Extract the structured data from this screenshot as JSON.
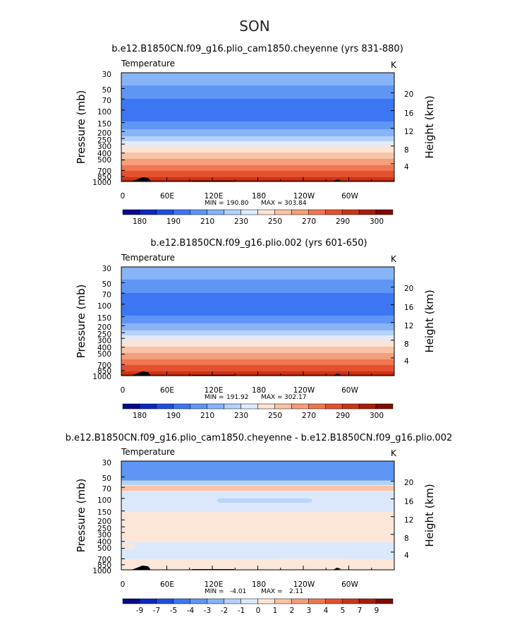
{
  "title": "SON",
  "colors": {
    "abs": [
      "#08088a",
      "#0d26c2",
      "#1a4fe0",
      "#3c76f2",
      "#5f95f5",
      "#87b3f7",
      "#b4d1fa",
      "#dfeafc",
      "#fbe3d6",
      "#f9c3a7",
      "#f59e7c",
      "#ef7652",
      "#e4502d",
      "#cb3416",
      "#a91d07",
      "#7d0b02"
    ],
    "diff": [
      "#08088a",
      "#0d26c2",
      "#1a4fe0",
      "#3c76f2",
      "#5f95f5",
      "#87b3f7",
      "#b4d1fa",
      "#dbe8fb",
      "#fbe6d8",
      "#f9c3a7",
      "#f59e7c",
      "#ef7652",
      "#e4502d",
      "#cb3416",
      "#a91d07",
      "#7d0b02"
    ],
    "terrain": "#000000"
  },
  "chart_data": [
    {
      "type": "heatmap",
      "title": "b.e12.B1850CN.f09_g16.plio_cam1850.cheyenne (yrs 831-880)",
      "variable": "Temperature",
      "units": "K",
      "ylabel": "Pressure (mb)",
      "y2label": "Height (km)",
      "yticks": [
        "30",
        "50",
        "70",
        "100",
        "150",
        "200",
        "250",
        "300",
        "400",
        "500",
        "700",
        "850",
        "1000"
      ],
      "y2ticks": [
        "20",
        "16",
        "12",
        "8",
        "4"
      ],
      "xticks": [
        "0",
        "60E",
        "120E",
        "180",
        "120W",
        "60W"
      ],
      "stats": {
        "min_label": "MIN =",
        "min": "190.80",
        "max_label": "MAX =",
        "max": "303.84"
      },
      "colorbar_labels": [
        "180",
        "190",
        "210",
        "230",
        "250",
        "270",
        "290",
        "300"
      ],
      "profile": [
        {
          "p": 30,
          "v": 218
        },
        {
          "p": 40,
          "v": 212
        },
        {
          "p": 50,
          "v": 208
        },
        {
          "p": 60,
          "v": 203
        },
        {
          "p": 70,
          "v": 200
        },
        {
          "p": 100,
          "v": 197
        },
        {
          "p": 130,
          "v": 197
        },
        {
          "p": 150,
          "v": 201
        },
        {
          "p": 170,
          "v": 207
        },
        {
          "p": 200,
          "v": 213
        },
        {
          "p": 250,
          "v": 223
        },
        {
          "p": 300,
          "v": 236
        },
        {
          "p": 350,
          "v": 245
        },
        {
          "p": 400,
          "v": 251
        },
        {
          "p": 500,
          "v": 262
        },
        {
          "p": 600,
          "v": 271
        },
        {
          "p": 700,
          "v": 279
        },
        {
          "p": 850,
          "v": 288
        },
        {
          "p": 925,
          "v": 293
        },
        {
          "p": 1000,
          "v": 298
        }
      ]
    },
    {
      "type": "heatmap",
      "title": "b.e12.B1850CN.f09_g16.plio.002 (yrs 601-650)",
      "variable": "Temperature",
      "units": "K",
      "ylabel": "Pressure (mb)",
      "y2label": "Height (km)",
      "yticks": [
        "30",
        "50",
        "70",
        "100",
        "150",
        "200",
        "250",
        "300",
        "400",
        "500",
        "700",
        "850",
        "1000"
      ],
      "y2ticks": [
        "20",
        "16",
        "12",
        "8",
        "4"
      ],
      "xticks": [
        "0",
        "60E",
        "120E",
        "180",
        "120W",
        "60W"
      ],
      "stats": {
        "min_label": "MIN =",
        "min": "191.92",
        "max_label": "MAX =",
        "max": "302.17"
      },
      "colorbar_labels": [
        "180",
        "190",
        "210",
        "230",
        "250",
        "270",
        "290",
        "300"
      ],
      "profile": [
        {
          "p": 30,
          "v": 218
        },
        {
          "p": 40,
          "v": 212
        },
        {
          "p": 50,
          "v": 208
        },
        {
          "p": 60,
          "v": 203
        },
        {
          "p": 70,
          "v": 200
        },
        {
          "p": 100,
          "v": 197
        },
        {
          "p": 130,
          "v": 197
        },
        {
          "p": 150,
          "v": 201
        },
        {
          "p": 170,
          "v": 207
        },
        {
          "p": 200,
          "v": 213
        },
        {
          "p": 250,
          "v": 223
        },
        {
          "p": 300,
          "v": 236
        },
        {
          "p": 350,
          "v": 245
        },
        {
          "p": 400,
          "v": 251
        },
        {
          "p": 500,
          "v": 262
        },
        {
          "p": 600,
          "v": 271
        },
        {
          "p": 700,
          "v": 279
        },
        {
          "p": 850,
          "v": 288
        },
        {
          "p": 925,
          "v": 293
        },
        {
          "p": 1000,
          "v": 298
        }
      ]
    },
    {
      "type": "heatmap",
      "title": "b.e12.B1850CN.f09_g16.plio_cam1850.cheyenne - b.e12.B1850CN.f09_g16.plio.002",
      "variable": "Temperature",
      "units": "K",
      "ylabel": "Pressure (mb)",
      "y2label": "Height (km)",
      "yticks": [
        "30",
        "50",
        "70",
        "100",
        "150",
        "200",
        "250",
        "300",
        "400",
        "500",
        "700",
        "850",
        "1000"
      ],
      "y2ticks": [
        "20",
        "16",
        "12",
        "8",
        "4"
      ],
      "xticks": [
        "0",
        "60E",
        "120E",
        "180",
        "120W",
        "60W"
      ],
      "stats": {
        "min_label": "MIN =",
        "min": "-4.01",
        "max_label": "MAX =",
        "max": "2.11"
      },
      "colorbar_labels": [
        "-9",
        "-7",
        "-5",
        "-4",
        "-3",
        "-2",
        "-1",
        "0",
        "1",
        "2",
        "3",
        "4",
        "5",
        "7",
        "9"
      ],
      "profile": [
        {
          "p": 30,
          "v": -3.5
        },
        {
          "p": 55,
          "v": -3.5
        },
        {
          "p": 57,
          "v": -1.5
        },
        {
          "p": 65,
          "v": -1.5
        },
        {
          "p": 66,
          "v": 1.5
        },
        {
          "p": 78,
          "v": 1.5
        },
        {
          "p": 80,
          "v": -0.5
        },
        {
          "p": 150,
          "v": -0.5
        },
        {
          "p": 160,
          "v": 0.5
        },
        {
          "p": 400,
          "v": 0.5
        },
        {
          "p": 420,
          "v": -0.5
        },
        {
          "p": 700,
          "v": -0.5
        },
        {
          "p": 720,
          "v": 0.5
        },
        {
          "p": 1000,
          "v": 0.5
        }
      ]
    }
  ]
}
